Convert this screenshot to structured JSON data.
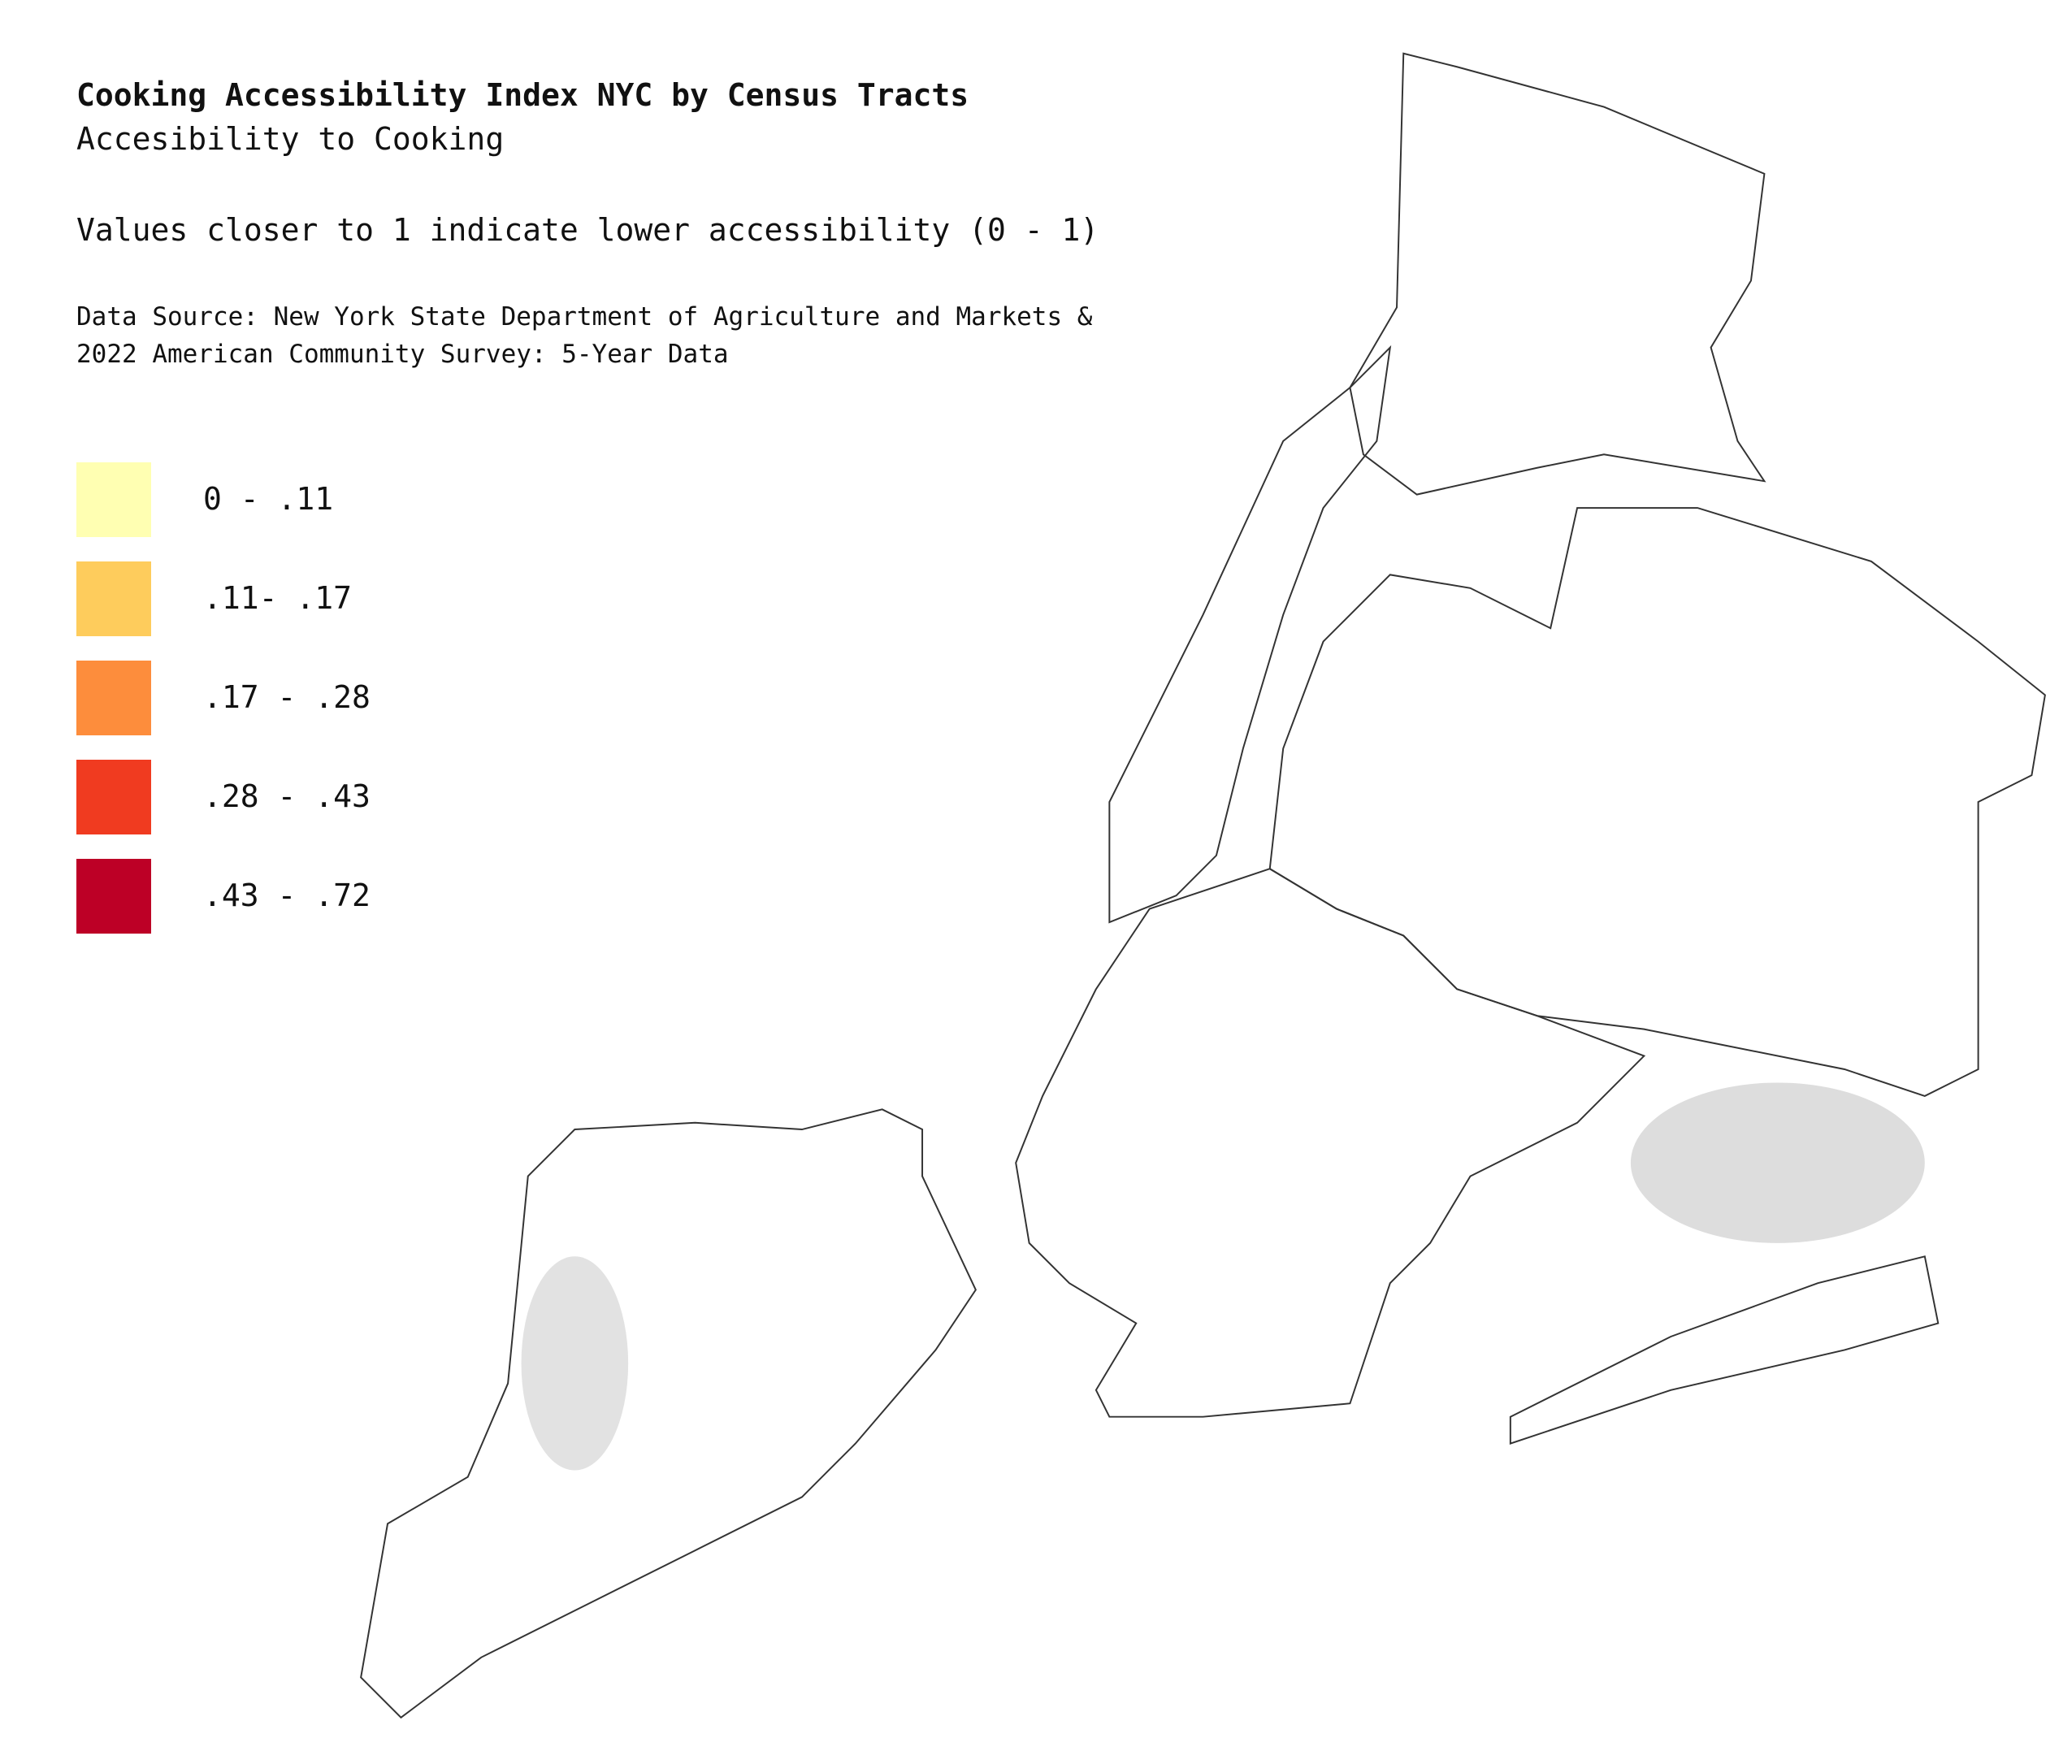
{
  "header": {
    "title": "Cooking Accessibility Index NYC by Census Tracts",
    "subtitle": "Accesibility to Cooking",
    "note": "Values closer to 1 indicate lower accessibility (0 - 1)",
    "source": [
      "Data Source: New York State Department of Agriculture and Markets &",
      "2022 American Community Survey: 5-Year Data"
    ]
  },
  "legend": [
    {
      "label": "0 - .11",
      "color": "#ffffb2"
    },
    {
      "label": ".11- .17",
      "color": "#fecc5c"
    },
    {
      "label": ".17 - .28",
      "color": "#fd8d3c"
    },
    {
      "label": ".28 - .43",
      "color": "#f03b20"
    },
    {
      "label": ".43 - .72",
      "color": "#bd0026"
    }
  ]
}
